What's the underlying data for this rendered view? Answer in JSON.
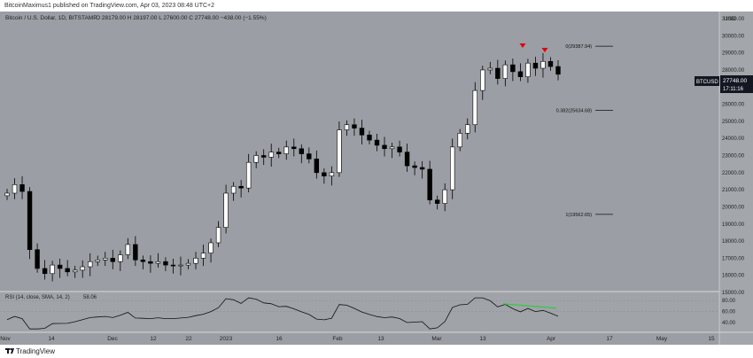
{
  "header": {
    "publisher_line": "BitcoinMaximus1 published on TradingView.com, Apr 03, 2023 08:48 UTC+2"
  },
  "footer": {
    "brand": "TradingView"
  },
  "legend": {
    "title": "Bitcoin / U.S. Dollar, 1D, BITSTAMP",
    "ohlc": "O 28179.00 H 28197.00 L 27600.00 C 27748.00 −438.00 (−1.55%)"
  },
  "price_axis": {
    "currency": "USD",
    "ticks": [
      "31000.00",
      "30000.00",
      "29000.00",
      "28000.00",
      "27000.00",
      "26000.00",
      "25000.00",
      "24000.00",
      "23000.00",
      "22000.00",
      "21000.00",
      "20000.00",
      "19000.00",
      "18000.00",
      "17000.00",
      "16000.00",
      "15000.00"
    ]
  },
  "symbol_badge": {
    "symbol": "BTCUSD",
    "price": "27748.00",
    "countdown": "17:11:16"
  },
  "fib_levels": [
    {
      "label": "0(29387.94)",
      "value": 29387.94
    },
    {
      "label": "0.382(25634.68)",
      "value": 25634.68
    },
    {
      "label": "1(19562.65)",
      "value": 19562.65
    }
  ],
  "rsi": {
    "label": "RSI (14, close, SMA, 14, 2)",
    "value": "58.06",
    "ticks": [
      "80.00",
      "60.00",
      "40.00"
    ]
  },
  "time_axis": {
    "ticks": [
      "Nov",
      "14",
      "Dec",
      "12",
      "22",
      "2023",
      "16",
      "Feb",
      "13",
      "Mar",
      "13",
      "Apr",
      "17",
      "May",
      "15"
    ]
  },
  "colors": {
    "background": "#9b9ea4",
    "up": "#ffffff",
    "down": "#000000",
    "marker": "#e00000",
    "rsi_highlight": "#2ecc40"
  },
  "chart_data": {
    "type": "candlestick",
    "title": "Bitcoin / U.S. Dollar, 1D, BITSTAMP",
    "ylabel": "USD",
    "ylim": [
      15000,
      31500
    ],
    "approximate_closes": [
      20800,
      21300,
      20900,
      17500,
      16400,
      16100,
      16600,
      16400,
      16200,
      16300,
      16500,
      16800,
      16900,
      17000,
      16800,
      17200,
      17800,
      16900,
      16800,
      16700,
      16800,
      16600,
      16550,
      16600,
      16700,
      17000,
      17300,
      17900,
      18800,
      20800,
      21200,
      21100,
      22600,
      23000,
      22900,
      23200,
      23100,
      23500,
      23400,
      23100,
      22800,
      22000,
      21800,
      22000,
      24500,
      24800,
      24600,
      24200,
      23900,
      23600,
      23400,
      23500,
      23200,
      22400,
      22300,
      22200,
      20400,
      20200,
      21000,
      23500,
      24300,
      24800,
      26800,
      28000,
      28100,
      27500,
      28300,
      27900,
      27600,
      28400,
      28100,
      28500,
      28200,
      27748
    ],
    "annotations": [
      {
        "type": "fibonacci",
        "levels": [
          "0(29387.94)",
          "0.382(25634.68)",
          "1(19562.65)"
        ]
      },
      {
        "type": "bearish-markers",
        "count": 2
      }
    ]
  }
}
